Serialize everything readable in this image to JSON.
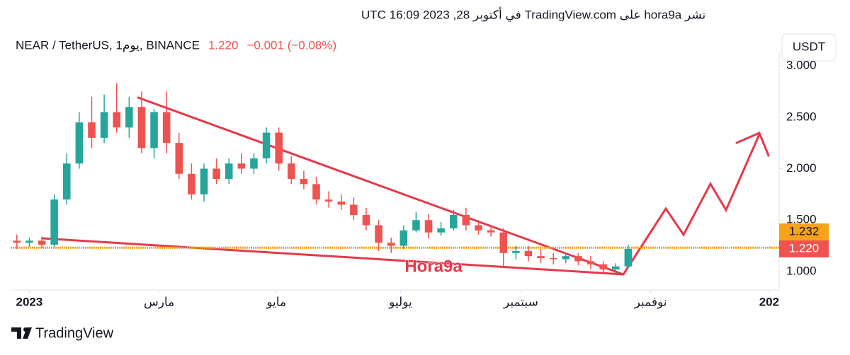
{
  "header": {
    "published": "نشر hora9a على TradingView.com في أكتوبر 28, 2023 16:09 UTC",
    "button": "USDT"
  },
  "chart_data": {
    "type": "candlestick",
    "title": "NEAR / TetherUS, 1يوم, BINANCE",
    "last_price": {
      "value": 1.22,
      "label": "1.220"
    },
    "change": "−0.001 (−0.08%)",
    "open": [
      1.3,
      1.28,
      1.3,
      1.26,
      1.7,
      2.05,
      2.45,
      2.3,
      2.55,
      2.4,
      2.6,
      2.2,
      2.55,
      2.25,
      1.95,
      1.75,
      2.0,
      1.9,
      2.05,
      2.0,
      2.1,
      2.35,
      2.05,
      1.9,
      1.85,
      1.7,
      1.68,
      1.65,
      1.55,
      1.45,
      1.28,
      1.25,
      1.4,
      1.5,
      1.38,
      1.42,
      1.55,
      1.45,
      1.4,
      1.38,
      1.18,
      1.2,
      1.15,
      1.13,
      1.12,
      1.15,
      1.1,
      1.07,
      1.02,
      1.05
    ],
    "high": [
      1.36,
      1.33,
      1.34,
      1.75,
      2.15,
      2.55,
      2.7,
      2.72,
      2.83,
      2.7,
      2.75,
      2.58,
      2.75,
      2.35,
      2.05,
      2.05,
      2.1,
      2.1,
      2.15,
      2.15,
      2.4,
      2.4,
      2.12,
      1.98,
      1.92,
      1.78,
      1.75,
      1.72,
      1.62,
      1.5,
      1.33,
      1.45,
      1.58,
      1.56,
      1.48,
      1.6,
      1.62,
      1.5,
      1.45,
      1.42,
      1.25,
      1.25,
      1.22,
      1.18,
      1.18,
      1.18,
      1.15,
      1.1,
      1.08,
      1.26
    ],
    "low": [
      1.22,
      1.24,
      1.23,
      1.24,
      1.65,
      2.0,
      2.2,
      2.25,
      2.35,
      2.3,
      2.15,
      2.1,
      2.15,
      1.9,
      1.7,
      1.68,
      1.85,
      1.85,
      1.95,
      1.95,
      2.05,
      1.98,
      1.85,
      1.8,
      1.65,
      1.62,
      1.6,
      1.5,
      1.4,
      1.2,
      1.18,
      1.22,
      1.38,
      1.32,
      1.35,
      1.4,
      1.4,
      1.36,
      1.34,
      1.05,
      1.12,
      1.1,
      1.08,
      1.07,
      1.08,
      1.06,
      1.02,
      0.99,
      0.98,
      1.03
    ],
    "close": [
      1.28,
      1.3,
      1.26,
      1.7,
      2.05,
      2.45,
      2.3,
      2.55,
      2.4,
      2.6,
      2.2,
      2.55,
      2.25,
      1.95,
      1.75,
      2.0,
      1.9,
      2.05,
      2.0,
      2.1,
      2.35,
      2.05,
      1.9,
      1.85,
      1.7,
      1.68,
      1.65,
      1.55,
      1.45,
      1.28,
      1.25,
      1.4,
      1.5,
      1.38,
      1.42,
      1.55,
      1.45,
      1.4,
      1.38,
      1.18,
      1.2,
      1.15,
      1.13,
      1.12,
      1.15,
      1.1,
      1.07,
      1.02,
      1.05,
      1.22
    ],
    "up_color": "#26a69a",
    "down_color": "#ef5350",
    "xlim": [
      0,
      61.6
    ],
    "xticks": [
      {
        "value": 1.5,
        "label": "2023"
      },
      {
        "value": 11.9,
        "label": "مارس"
      },
      {
        "value": 21.3,
        "label": "مايو"
      },
      {
        "value": 31.25,
        "label": "يوليو"
      },
      {
        "value": 40.9,
        "label": "سبتمبر"
      },
      {
        "value": 51.3,
        "label": "نوفمبر"
      },
      {
        "value": 60.8,
        "label": "202"
      }
    ],
    "ylim": [
      0.821,
      3.124
    ],
    "yticks": [
      {
        "value": 1,
        "label": "1.000"
      },
      {
        "value": 1.5,
        "label": "1.500"
      },
      {
        "value": 2,
        "label": "2.000"
      },
      {
        "value": 2.5,
        "label": "2.500"
      },
      {
        "value": 3,
        "label": "3.000"
      }
    ],
    "horizontal_line": {
      "value": 1.232,
      "label": "1.232",
      "color": "#f7a21b"
    },
    "annotation": "Hora9a"
  },
  "footer": {
    "brand": "TradingView"
  }
}
